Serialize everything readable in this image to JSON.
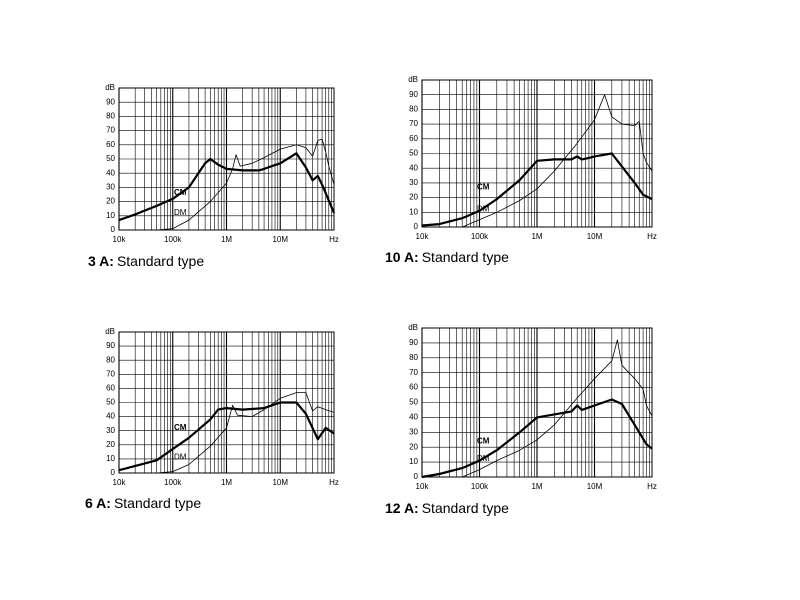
{
  "chart_data": [
    {
      "type": "line",
      "title": "3 A:",
      "subtitle": "Standard type",
      "xlabel": "Hz",
      "ylabel": "dB",
      "xscale": "log",
      "xlim": [
        10000,
        100000000
      ],
      "ylim": [
        0,
        100
      ],
      "xticks": [
        {
          "value": 10000,
          "label": "10k"
        },
        {
          "value": 100000,
          "label": "100k"
        },
        {
          "value": 1000000,
          "label": "1M"
        },
        {
          "value": 10000000,
          "label": "10M"
        }
      ],
      "yticks": [
        0,
        10,
        20,
        30,
        40,
        50,
        60,
        70,
        80,
        90
      ],
      "grid": true,
      "minor_grid": true,
      "series": [
        {
          "name": "CM",
          "color": "#000000",
          "line_width": 2.2,
          "x": [
            10000,
            20000,
            50000,
            100000,
            200000,
            400000,
            500000,
            700000,
            1000000,
            2000000,
            4000000,
            5000000,
            7000000,
            10000000,
            20000000,
            30000000,
            40000000,
            50000000,
            60000000,
            100000000
          ],
          "values": [
            7,
            11,
            17,
            22,
            30,
            47,
            50,
            46,
            43,
            42,
            42,
            43,
            45,
            47,
            54,
            44,
            35,
            38,
            32,
            12
          ]
        },
        {
          "name": "DM",
          "color": "#000000",
          "line_width": 0.8,
          "x": [
            10000,
            50000,
            100000,
            200000,
            500000,
            1000000,
            1300000,
            1500000,
            1800000,
            3000000,
            5000000,
            10000000,
            20000000,
            30000000,
            40000000,
            50000000,
            60000000,
            70000000,
            80000000,
            100000000
          ],
          "values": [
            0,
            0,
            1,
            7,
            20,
            33,
            43,
            53,
            45,
            47,
            51,
            57,
            60,
            58,
            52,
            63,
            64,
            55,
            45,
            32
          ]
        }
      ]
    },
    {
      "type": "line",
      "title": "10 A:",
      "subtitle": "Standard type",
      "xlabel": "Hz",
      "ylabel": "dB",
      "xscale": "log",
      "xlim": [
        10000,
        100000000
      ],
      "ylim": [
        0,
        100
      ],
      "xticks": [
        {
          "value": 10000,
          "label": "10k"
        },
        {
          "value": 100000,
          "label": "100k"
        },
        {
          "value": 1000000,
          "label": "1M"
        },
        {
          "value": 10000000,
          "label": "10M"
        }
      ],
      "yticks": [
        0,
        10,
        20,
        30,
        40,
        50,
        60,
        70,
        80,
        90
      ],
      "grid": true,
      "minor_grid": true,
      "series": [
        {
          "name": "CM",
          "color": "#000000",
          "line_width": 2.2,
          "x": [
            10000,
            20000,
            50000,
            100000,
            200000,
            500000,
            1000000,
            2000000,
            4000000,
            5000000,
            6000000,
            8000000,
            10000000,
            20000000,
            50000000,
            70000000,
            100000000
          ],
          "values": [
            1,
            2,
            6,
            11,
            19,
            32,
            45,
            46,
            46,
            48,
            46,
            47,
            48,
            50,
            30,
            22,
            19
          ]
        },
        {
          "name": "DM",
          "color": "#000000",
          "line_width": 0.8,
          "x": [
            10000,
            50000,
            100000,
            200000,
            500000,
            1000000,
            2000000,
            5000000,
            10000000,
            15000000,
            20000000,
            30000000,
            50000000,
            60000000,
            70000000,
            80000000,
            100000000
          ],
          "values": [
            0,
            0,
            5,
            10,
            18,
            26,
            38,
            57,
            73,
            90,
            75,
            70,
            69,
            72,
            50,
            44,
            38
          ]
        }
      ]
    },
    {
      "type": "line",
      "title": "6 A:",
      "subtitle": "Standard type",
      "xlabel": "Hz",
      "ylabel": "dB",
      "xscale": "log",
      "xlim": [
        10000,
        100000000
      ],
      "ylim": [
        0,
        100
      ],
      "xticks": [
        {
          "value": 10000,
          "label": "10k"
        },
        {
          "value": 100000,
          "label": "100k"
        },
        {
          "value": 1000000,
          "label": "1M"
        },
        {
          "value": 10000000,
          "label": "10M"
        }
      ],
      "yticks": [
        0,
        10,
        20,
        30,
        40,
        50,
        60,
        70,
        80,
        90
      ],
      "grid": true,
      "minor_grid": true,
      "series": [
        {
          "name": "CM",
          "color": "#000000",
          "line_width": 2.2,
          "x": [
            10000,
            50000,
            100000,
            200000,
            500000,
            700000,
            1000000,
            2000000,
            5000000,
            10000000,
            20000000,
            30000000,
            50000000,
            70000000,
            100000000
          ],
          "values": [
            2,
            9,
            17,
            25,
            38,
            45,
            46,
            45,
            46,
            50,
            50,
            42,
            24,
            32,
            28
          ]
        },
        {
          "name": "DM",
          "color": "#000000",
          "line_width": 0.8,
          "x": [
            10000,
            50000,
            100000,
            200000,
            500000,
            1000000,
            1300000,
            1600000,
            3000000,
            5000000,
            10000000,
            20000000,
            30000000,
            40000000,
            50000000,
            70000000,
            100000000
          ],
          "values": [
            0,
            0,
            1,
            6,
            19,
            32,
            48,
            41,
            40,
            45,
            53,
            57,
            57,
            44,
            47,
            45,
            43
          ]
        }
      ]
    },
    {
      "type": "line",
      "title": "12 A:",
      "subtitle": "Standard type",
      "xlabel": "Hz",
      "ylabel": "dB",
      "xscale": "log",
      "xlim": [
        10000,
        100000000
      ],
      "ylim": [
        0,
        100
      ],
      "xticks": [
        {
          "value": 10000,
          "label": "10k"
        },
        {
          "value": 100000,
          "label": "100k"
        },
        {
          "value": 1000000,
          "label": "1M"
        },
        {
          "value": 10000000,
          "label": "10M"
        }
      ],
      "yticks": [
        0,
        10,
        20,
        30,
        40,
        50,
        60,
        70,
        80,
        90
      ],
      "grid": true,
      "minor_grid": true,
      "series": [
        {
          "name": "CM",
          "color": "#000000",
          "line_width": 2.2,
          "x": [
            10000,
            20000,
            50000,
            100000,
            200000,
            500000,
            1000000,
            2000000,
            4000000,
            5000000,
            6000000,
            10000000,
            20000000,
            30000000,
            50000000,
            80000000,
            100000000
          ],
          "values": [
            0,
            2,
            6,
            11,
            18,
            30,
            40,
            42,
            44,
            48,
            45,
            48,
            52,
            49,
            35,
            22,
            19
          ]
        },
        {
          "name": "DM",
          "color": "#000000",
          "line_width": 0.8,
          "x": [
            10000,
            50000,
            100000,
            200000,
            500000,
            1000000,
            2000000,
            5000000,
            10000000,
            20000000,
            25000000,
            30000000,
            50000000,
            70000000,
            80000000,
            100000000
          ],
          "values": [
            0,
            0,
            5,
            11,
            18,
            25,
            35,
            53,
            66,
            78,
            92,
            75,
            66,
            59,
            48,
            41
          ]
        }
      ]
    }
  ]
}
